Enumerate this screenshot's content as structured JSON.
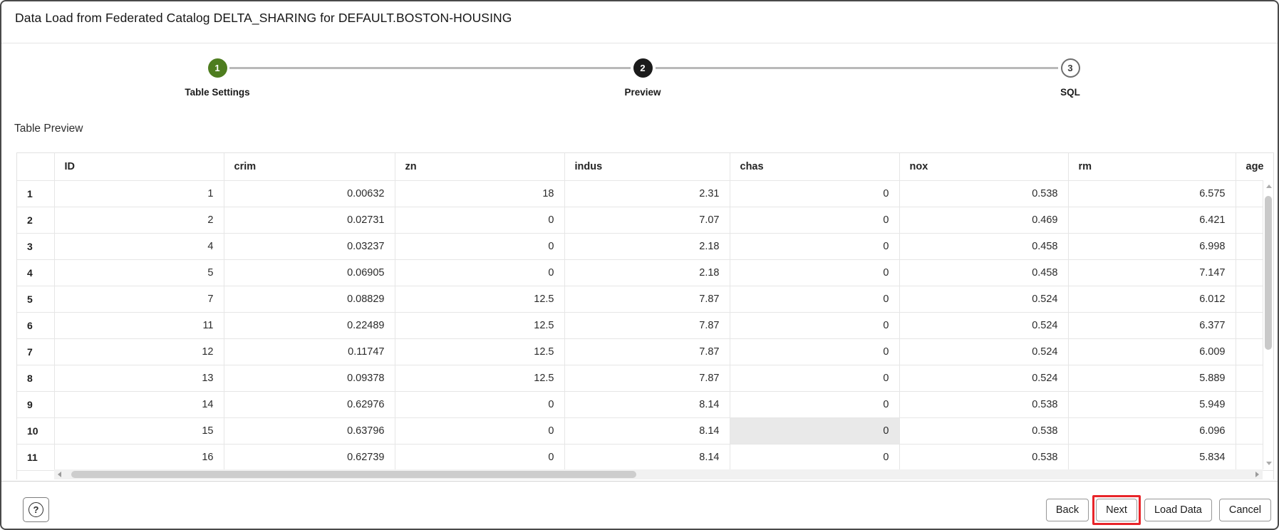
{
  "window": {
    "title": "Data Load from Federated Catalog DELTA_SHARING for DEFAULT.BOSTON-HOUSING"
  },
  "stepper": {
    "steps": [
      {
        "number": "1",
        "label": "Table Settings",
        "state": "done"
      },
      {
        "number": "2",
        "label": "Preview",
        "state": "active"
      },
      {
        "number": "3",
        "label": "SQL",
        "state": "upcoming"
      }
    ]
  },
  "section": {
    "title": "Table Preview"
  },
  "table": {
    "columns": [
      "ID",
      "crim",
      "zn",
      "indus",
      "chas",
      "nox",
      "rm",
      "age"
    ],
    "rows": [
      {
        "num": "1",
        "cells": [
          "1",
          "0.00632",
          "18",
          "2.31",
          "0",
          "0.538",
          "6.575",
          ""
        ]
      },
      {
        "num": "2",
        "cells": [
          "2",
          "0.02731",
          "0",
          "7.07",
          "0",
          "0.469",
          "6.421",
          ""
        ]
      },
      {
        "num": "3",
        "cells": [
          "4",
          "0.03237",
          "0",
          "2.18",
          "0",
          "0.458",
          "6.998",
          ""
        ]
      },
      {
        "num": "4",
        "cells": [
          "5",
          "0.06905",
          "0",
          "2.18",
          "0",
          "0.458",
          "7.147",
          ""
        ]
      },
      {
        "num": "5",
        "cells": [
          "7",
          "0.08829",
          "12.5",
          "7.87",
          "0",
          "0.524",
          "6.012",
          ""
        ]
      },
      {
        "num": "6",
        "cells": [
          "11",
          "0.22489",
          "12.5",
          "7.87",
          "0",
          "0.524",
          "6.377",
          ""
        ]
      },
      {
        "num": "7",
        "cells": [
          "12",
          "0.11747",
          "12.5",
          "7.87",
          "0",
          "0.524",
          "6.009",
          ""
        ]
      },
      {
        "num": "8",
        "cells": [
          "13",
          "0.09378",
          "12.5",
          "7.87",
          "0",
          "0.524",
          "5.889",
          ""
        ]
      },
      {
        "num": "9",
        "cells": [
          "14",
          "0.62976",
          "0",
          "8.14",
          "0",
          "0.538",
          "5.949",
          ""
        ]
      },
      {
        "num": "10",
        "cells": [
          "15",
          "0.63796",
          "0",
          "8.14",
          "0",
          "0.538",
          "6.096",
          ""
        ]
      },
      {
        "num": "11",
        "cells": [
          "16",
          "0.62739",
          "0",
          "8.14",
          "0",
          "0.538",
          "5.834",
          ""
        ]
      }
    ],
    "selected_cell": {
      "row": "10",
      "column": "chas",
      "row_index": 9,
      "col_index": 4
    }
  },
  "footer": {
    "help_icon": "?",
    "buttons": [
      {
        "label": "Back"
      },
      {
        "label": "Next",
        "highlighted": true
      },
      {
        "label": "Load Data"
      },
      {
        "label": "Cancel"
      }
    ]
  },
  "colors": {
    "step_done_green": "#4e7d1f",
    "step_active_black": "#1b1b1b",
    "annotation_red": "#e8252a",
    "selected_cell_bg": "#e9e9e9"
  }
}
